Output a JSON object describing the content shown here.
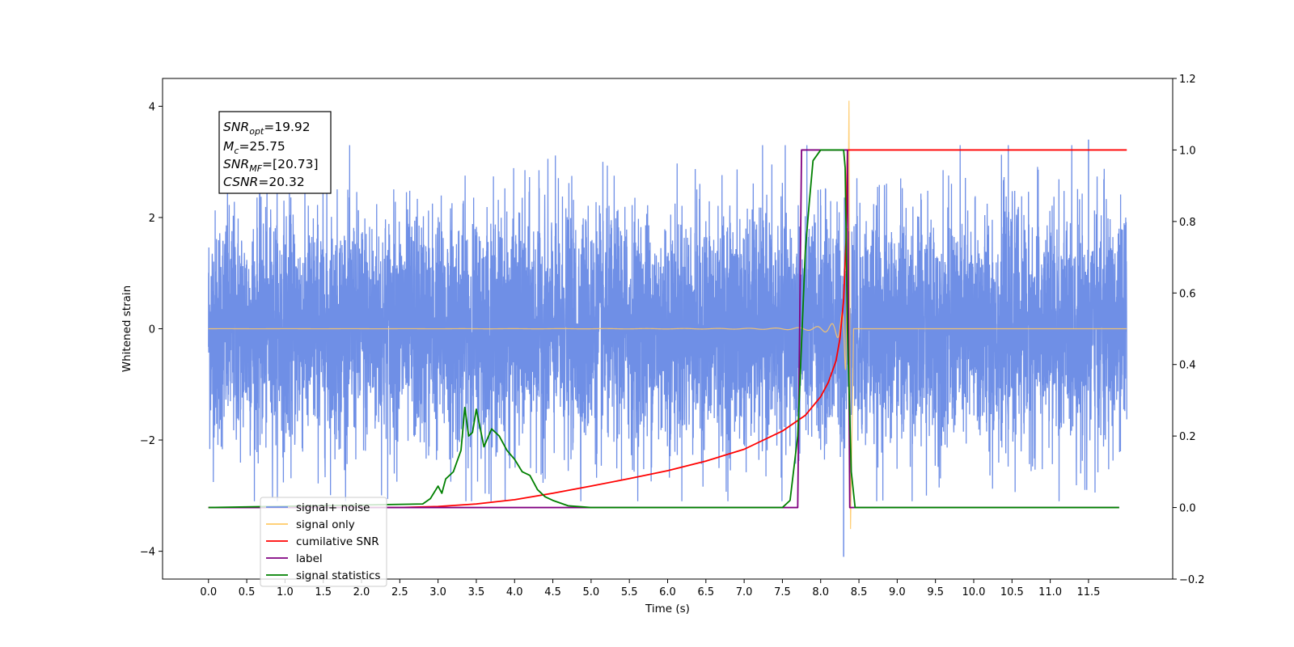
{
  "chart_data": {
    "type": "line",
    "xlabel": "Time (s)",
    "ylabel_left": "Whitened strain",
    "ylabel_right": "",
    "x_range": [
      -0.6,
      12.6
    ],
    "y_left_range": [
      -4.5,
      4.5
    ],
    "y_right_range": [
      -0.2,
      1.2
    ],
    "x_ticks": [
      "0.0",
      "0.5",
      "1.0",
      "1.5",
      "2.0",
      "2.5",
      "3.0",
      "3.5",
      "4.0",
      "4.5",
      "5.0",
      "5.5",
      "6.0",
      "6.5",
      "7.0",
      "7.5",
      "8.0",
      "8.5",
      "9.0",
      "9.5",
      "10.0",
      "10.5",
      "11.0",
      "11.5"
    ],
    "y_left_ticks": [
      "4",
      "2",
      "0",
      "−2",
      "−4"
    ],
    "y_right_ticks": [
      "1.2",
      "1.0",
      "0.8",
      "0.6",
      "0.4",
      "0.2",
      "0.0",
      "−0.2"
    ],
    "grid": false,
    "annotation": {
      "snr_opt": {
        "base": "SNR",
        "sub": "opt",
        "value": "=19.92"
      },
      "mc": {
        "base": "M",
        "sub": "c",
        "value": "=25.75"
      },
      "snr_mf": {
        "base": "SNR",
        "sub": "MF",
        "value": "=[20.73]"
      },
      "csnr": {
        "base": "CSNR",
        "value": "=20.32"
      }
    },
    "legend_placement": "lower-left",
    "series": [
      {
        "name": "signal+ noise",
        "axis": "left",
        "color": "#6f8fe6",
        "description_values": {
          "x_start": 0.0,
          "x_end": 12.0,
          "typical_amplitude": 1.3,
          "max": 3.4,
          "min": -4.1
        }
      },
      {
        "name": "signal only",
        "axis": "left",
        "color": "#ffc966",
        "chirp": {
          "x_start": 0.0,
          "merger_x": 8.35,
          "max": 4.1,
          "min": -3.6
        }
      },
      {
        "name": "cumilative SNR",
        "axis": "right",
        "color": "#ff0000",
        "x": [
          0.0,
          2.5,
          3.0,
          3.5,
          4.0,
          4.5,
          5.0,
          5.5,
          6.0,
          6.5,
          7.0,
          7.5,
          7.8,
          8.0,
          8.1,
          8.2,
          8.25,
          8.3,
          8.33,
          8.35,
          12.0
        ],
        "y": [
          0.0,
          0.0,
          0.003,
          0.01,
          0.022,
          0.04,
          0.06,
          0.081,
          0.103,
          0.13,
          0.163,
          0.214,
          0.258,
          0.31,
          0.35,
          0.41,
          0.47,
          0.58,
          0.74,
          1.0,
          1.0
        ]
      },
      {
        "name": "label",
        "axis": "right",
        "color": "#800080",
        "x": [
          0.0,
          7.7,
          7.75,
          8.35,
          8.38,
          11.9
        ],
        "y": [
          0.0,
          0.0,
          1.0,
          1.0,
          0.0,
          0.0
        ]
      },
      {
        "name": "signal statistics",
        "axis": "right",
        "color": "#008000",
        "x": [
          0.0,
          2.8,
          2.9,
          3.0,
          3.05,
          3.1,
          3.2,
          3.3,
          3.35,
          3.4,
          3.45,
          3.5,
          3.6,
          3.7,
          3.8,
          3.9,
          4.0,
          4.1,
          4.2,
          4.3,
          4.4,
          4.5,
          4.7,
          5.0,
          7.5,
          7.6,
          7.7,
          7.8,
          7.85,
          7.9,
          8.0,
          8.1,
          8.3,
          8.32,
          8.35,
          8.4,
          8.45,
          11.9
        ],
        "y": [
          0.0,
          0.01,
          0.025,
          0.06,
          0.04,
          0.08,
          0.1,
          0.16,
          0.28,
          0.2,
          0.21,
          0.275,
          0.17,
          0.22,
          0.2,
          0.16,
          0.135,
          0.1,
          0.09,
          0.05,
          0.03,
          0.02,
          0.005,
          0.0,
          0.0,
          0.02,
          0.2,
          0.72,
          0.85,
          0.97,
          1.0,
          1.0,
          1.0,
          0.95,
          0.5,
          0.1,
          0.0,
          0.0
        ]
      }
    ]
  }
}
